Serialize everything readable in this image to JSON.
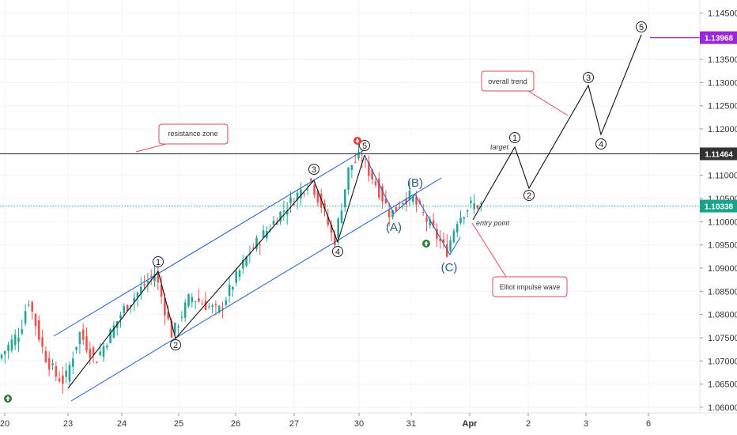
{
  "chart_data": {
    "type": "candlestick",
    "symbol_pair_note": "",
    "x_labels": [
      "20",
      "23",
      "24",
      "25",
      "26",
      "27",
      "30",
      "31",
      "Apr",
      "2",
      "3",
      "6"
    ],
    "y_ticks": [
      "1.14500",
      "1.14000",
      "1.13500",
      "1.13000",
      "1.12500",
      "1.12000",
      "1.11500",
      "1.11000",
      "1.10500",
      "1.10000",
      "1.09500",
      "1.09000",
      "1.08500",
      "1.08000",
      "1.07500",
      "1.07000",
      "1.06500",
      "1.06000"
    ],
    "ylim": [
      1.0588,
      1.1478
    ],
    "price_labels": [
      {
        "value": "1.13968",
        "color": "#9c27d8"
      },
      {
        "value": "1.11464",
        "color": "#333333"
      },
      {
        "value": "1.10338",
        "color": "#19a38a"
      }
    ],
    "levels": {
      "resistance": 1.11464,
      "current": 1.10338,
      "target_high": 1.13968
    },
    "colors": {
      "up": "#26a69a",
      "down": "#ef5350",
      "channel": "#1e5cc8",
      "wave": "#111111",
      "callout": "#d94f5c",
      "purple": "#9c27d8"
    },
    "annotations": {
      "resistance_zone": "resistance zone",
      "overall_trend": "overall trend",
      "target": "target",
      "entry_point": "entry point",
      "elliot": "Elliot impulse wave"
    },
    "wave_labels": [
      "1",
      "2",
      "3",
      "4",
      "5",
      "1",
      "2",
      "3",
      "4",
      "5"
    ],
    "correction_labels": [
      "(A)",
      "(B)",
      "(C)"
    ]
  }
}
